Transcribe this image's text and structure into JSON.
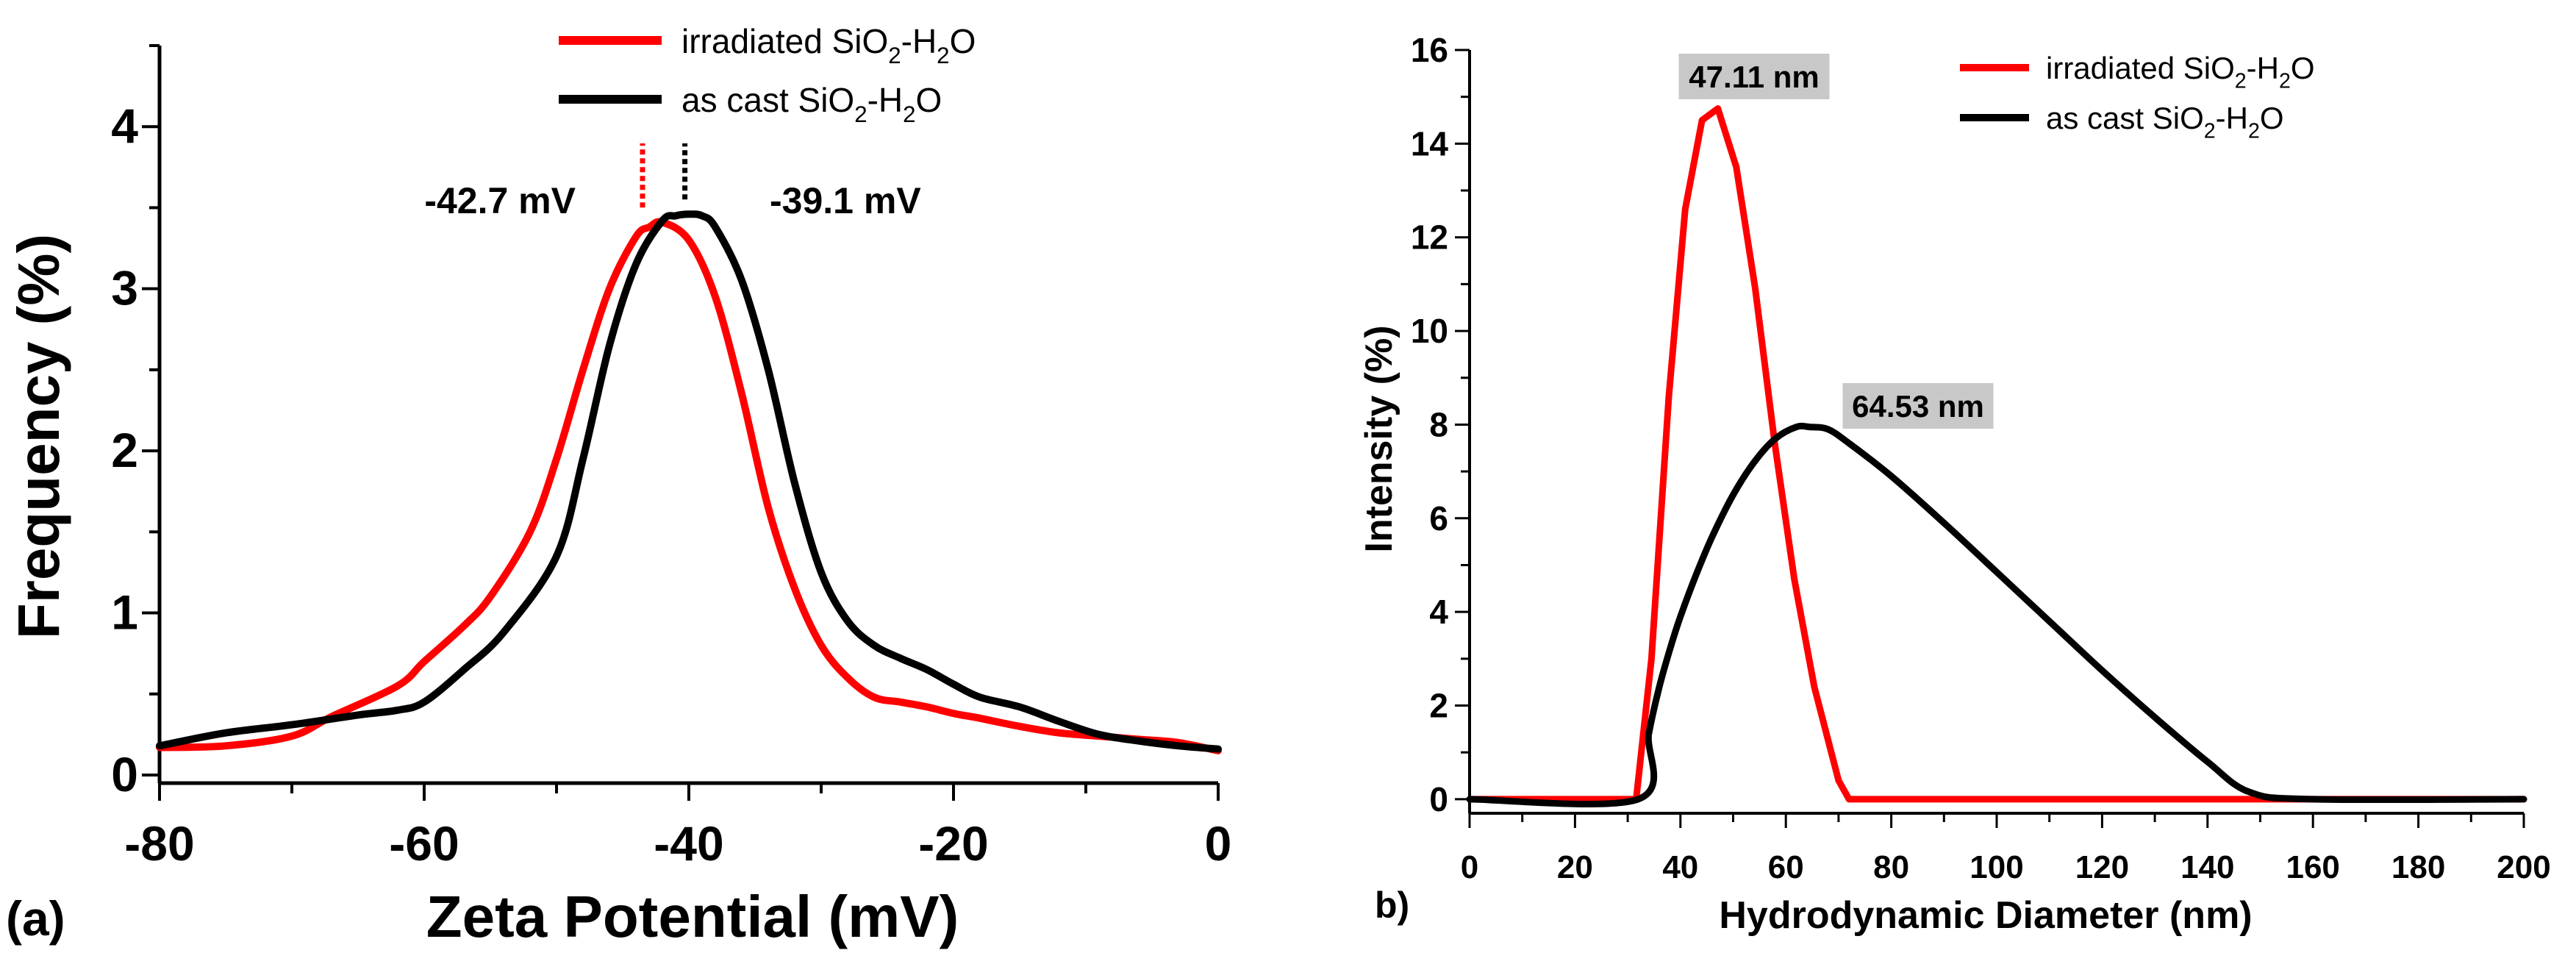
{
  "chart_data": [
    {
      "panel_label": "(a)",
      "type": "line",
      "xlabel": "Zeta Potential (mV)",
      "ylabel": "Frequency (%)",
      "xlim": [
        -80,
        0
      ],
      "ylim": [
        -0.05,
        4.5
      ],
      "xticks": [
        "-80",
        "-60",
        "-40",
        "-20",
        "0"
      ],
      "yticks": [
        "0",
        "1",
        "2",
        "3",
        "4"
      ],
      "grid": false,
      "legend_position": "top-center",
      "series": [
        {
          "name_main": "irradiated SiO",
          "name_sub1": "2",
          "name_mid": "-H",
          "name_sub2": "2",
          "name_end": "O",
          "color": "#ff0000",
          "x": [
            -80,
            -75,
            -70,
            -67,
            -62,
            -60,
            -57,
            -55,
            -52,
            -50,
            -48,
            -46,
            -44,
            -43,
            -42,
            -40,
            -38,
            -36,
            -34,
            -32,
            -30,
            -28,
            -26,
            -24,
            -22,
            -20,
            -18,
            -15,
            -12,
            -9,
            -6,
            -3,
            0
          ],
          "y": [
            0.17,
            0.18,
            0.24,
            0.36,
            0.55,
            0.7,
            0.92,
            1.1,
            1.5,
            1.95,
            2.5,
            3.0,
            3.32,
            3.38,
            3.41,
            3.3,
            2.95,
            2.35,
            1.65,
            1.15,
            0.8,
            0.6,
            0.48,
            0.45,
            0.42,
            0.38,
            0.35,
            0.3,
            0.26,
            0.24,
            0.22,
            0.2,
            0.15
          ]
        },
        {
          "name_main": "as cast SiO",
          "name_sub1": "2",
          "name_mid": "-H",
          "name_sub2": "2",
          "name_end": "O",
          "color": "#000000",
          "x": [
            -80,
            -75,
            -70,
            -65,
            -62,
            -60,
            -57,
            -54,
            -50,
            -48,
            -46,
            -44,
            -42,
            -41,
            -40,
            -39,
            -38,
            -36,
            -34,
            -32,
            -30,
            -28,
            -26,
            -24,
            -22,
            -20,
            -18,
            -15,
            -12,
            -9,
            -6,
            -3,
            0
          ],
          "y": [
            0.18,
            0.26,
            0.31,
            0.37,
            0.4,
            0.45,
            0.65,
            0.88,
            1.35,
            1.95,
            2.65,
            3.15,
            3.42,
            3.45,
            3.46,
            3.45,
            3.38,
            3.05,
            2.5,
            1.8,
            1.25,
            0.95,
            0.8,
            0.72,
            0.65,
            0.56,
            0.48,
            0.42,
            0.33,
            0.25,
            0.21,
            0.18,
            0.16
          ]
        }
      ],
      "annotations": [
        {
          "text": "-42.7 mV",
          "x": -43.5,
          "color": "#ff0000"
        },
        {
          "text": "-39.1 mV",
          "x": -40.3,
          "color": "#000000"
        }
      ]
    },
    {
      "panel_label": "b)",
      "type": "line",
      "xlabel": "Hydrodynamic Diameter (nm)",
      "ylabel": "Intensity (%)",
      "xlim": [
        0,
        200
      ],
      "ylim": [
        -0.3,
        16
      ],
      "xticks": [
        "0",
        "20",
        "40",
        "60",
        "80",
        "100",
        "120",
        "140",
        "160",
        "180",
        "200"
      ],
      "yticks": [
        "0",
        "2",
        "4",
        "6",
        "8",
        "10",
        "12",
        "14",
        "16"
      ],
      "grid": false,
      "legend_position": "top-right",
      "series": [
        {
          "name_main": "irradiated SiO",
          "name_sub1": "2",
          "name_mid": "-H",
          "name_sub2": "2",
          "name_end": "O",
          "color": "#ff0000",
          "x": [
            0,
            31.6,
            34.5,
            37.8,
            40.9,
            44.1,
            47.1,
            50.6,
            54.2,
            57.9,
            61.6,
            65.4,
            70,
            72,
            200
          ],
          "y": [
            0,
            0,
            3.0,
            8.6,
            12.6,
            14.5,
            14.75,
            13.5,
            10.9,
            7.6,
            4.7,
            2.4,
            0.4,
            0,
            0
          ]
        },
        {
          "name_main": "as cast SiO",
          "name_sub1": "2",
          "name_mid": "-H",
          "name_sub2": "2",
          "name_end": "O",
          "color": "#000000",
          "x": [
            0,
            32,
            34,
            36,
            38,
            40,
            43,
            46,
            50,
            54,
            58,
            62,
            64.5,
            68,
            72,
            80,
            90,
            100,
            110,
            120,
            130,
            140,
            148,
            160,
            200
          ],
          "y": [
            0,
            0,
            1.4,
            2.4,
            3.2,
            3.9,
            4.8,
            5.6,
            6.5,
            7.2,
            7.7,
            7.95,
            7.95,
            7.9,
            7.6,
            6.9,
            5.9,
            4.85,
            3.8,
            2.75,
            1.75,
            0.8,
            0.15,
            0,
            0
          ]
        }
      ],
      "annotations": [
        {
          "text": "47.11 nm",
          "x": 47.11,
          "y": 15.5,
          "box_color": "#c8c8c8"
        },
        {
          "text": "64.53 nm",
          "x": 64.53,
          "y": 8.5,
          "box_color": "#c8c8c8"
        }
      ]
    }
  ]
}
